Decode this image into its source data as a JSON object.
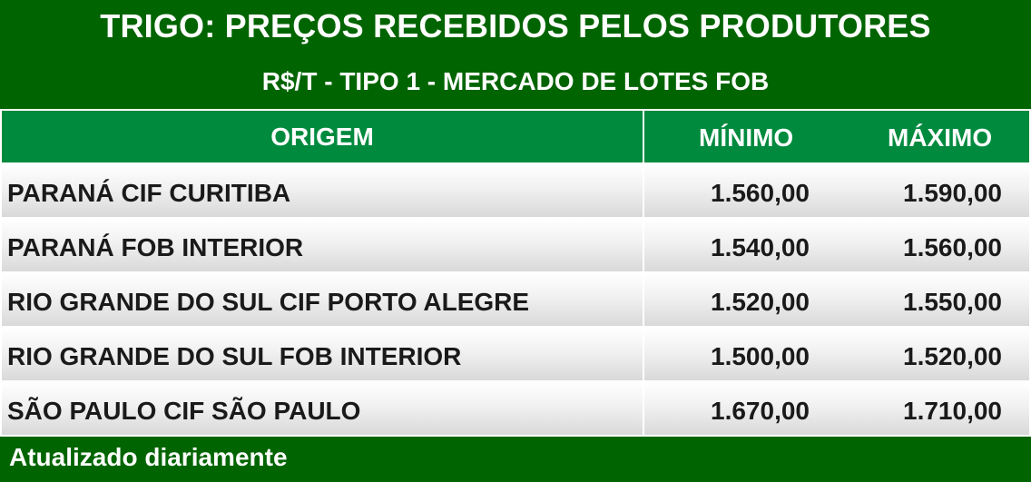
{
  "header": {
    "title": "TRIGO: PREÇOS RECEBIDOS PELOS PRODUTORES",
    "subtitle": "R$/T - TIPO 1 - MERCADO DE LOTES FOB"
  },
  "columns": {
    "origem": "ORIGEM",
    "minimo": "MÍNIMO",
    "maximo": "MÁXIMO"
  },
  "rows": [
    {
      "origem": "PARANÁ CIF CURITIBA",
      "minimo": "1.560,00",
      "maximo": "1.590,00"
    },
    {
      "origem": "PARANÁ FOB INTERIOR",
      "minimo": "1.540,00",
      "maximo": "1.560,00"
    },
    {
      "origem": "RIO GRANDE DO SUL CIF PORTO ALEGRE",
      "minimo": "1.520,00",
      "maximo": "1.550,00"
    },
    {
      "origem": "RIO GRANDE DO SUL FOB INTERIOR",
      "minimo": "1.500,00",
      "maximo": "1.520,00"
    },
    {
      "origem": "SÃO PAULO CIF SÃO PAULO",
      "minimo": "1.670,00",
      "maximo": "1.710,00"
    }
  ],
  "footer": {
    "note": "Atualizado diariamente"
  },
  "colors": {
    "dark_green": "#006400",
    "header_green": "#008a3e"
  }
}
